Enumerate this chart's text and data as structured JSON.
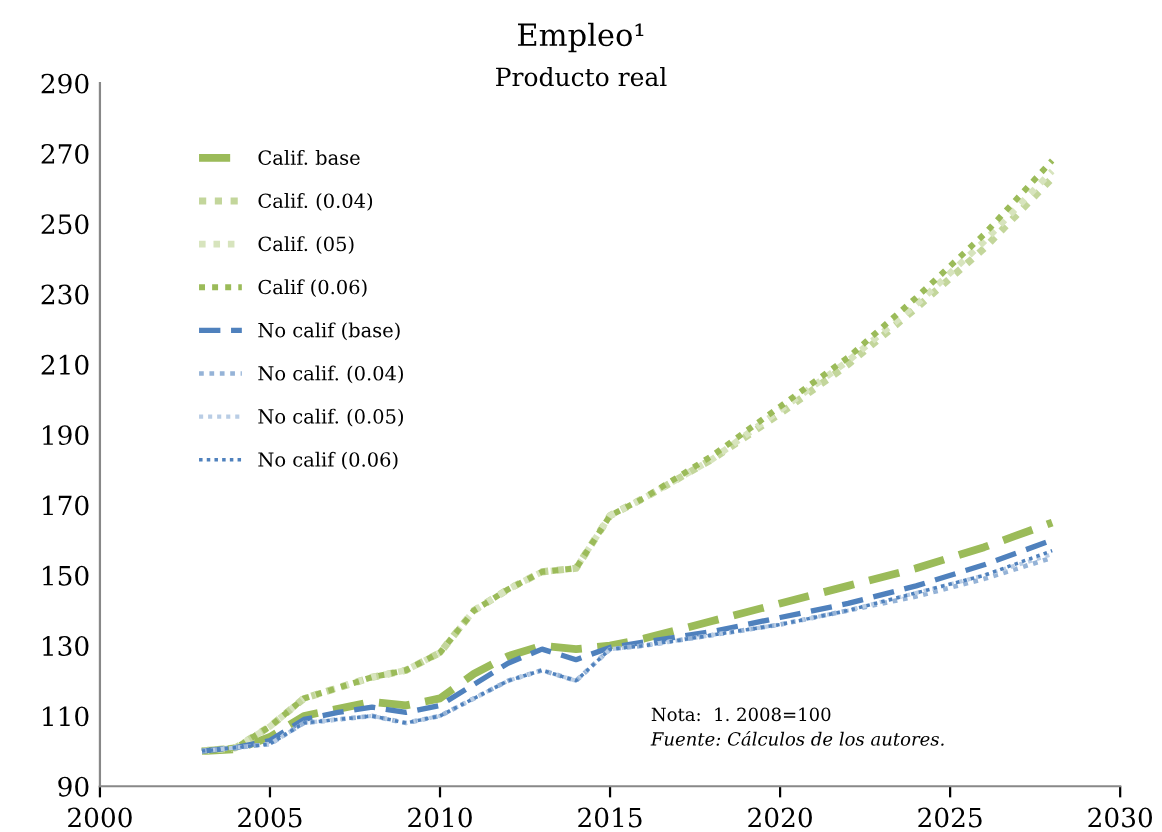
{
  "chart_data": {
    "type": "line",
    "title": "Empleo¹",
    "subtitle": "Producto real",
    "x": [
      2003,
      2004,
      2005,
      2006,
      2007,
      2008,
      2009,
      2010,
      2011,
      2012,
      2013,
      2014,
      2015,
      2016,
      2018,
      2020,
      2022,
      2024,
      2026,
      2028
    ],
    "series": [
      {
        "name": "Calif. base",
        "color": "#9bbb59",
        "line_style": "dashed",
        "values": [
          100,
          100.5,
          104,
          110,
          112,
          114,
          113,
          115,
          122,
          127,
          130,
          129,
          130,
          132,
          137,
          142,
          147,
          152,
          158,
          165
        ]
      },
      {
        "name": "Calif. (0.04)",
        "color": "#c3d69b",
        "line_style": "dotted",
        "values": [
          100,
          101,
          107,
          115,
          118,
          121,
          123,
          128,
          140,
          146,
          151,
          152,
          167,
          172,
          183,
          196,
          210,
          226,
          243,
          263
        ]
      },
      {
        "name": "Calif. (05)",
        "color": "#d7e4bd",
        "line_style": "dotted",
        "values": [
          100,
          101,
          107,
          115,
          118,
          121,
          123,
          128,
          140,
          146,
          151,
          152,
          167,
          172,
          183,
          197,
          211,
          227,
          245,
          265
        ]
      },
      {
        "name": "Calif (0.06)",
        "color": "#9bbb59",
        "line_style": "dotted",
        "values": [
          100,
          101,
          107,
          115,
          118,
          121,
          123,
          128,
          140,
          146,
          151,
          152,
          167,
          172,
          184,
          198,
          212,
          229,
          247,
          268
        ]
      },
      {
        "name": "No calif (base)",
        "color": "#4f81bd",
        "line_style": "dashed",
        "values": [
          100,
          101,
          103,
          109,
          111,
          112.5,
          111,
          113,
          119,
          125,
          129,
          126,
          129.5,
          131,
          134,
          138,
          142,
          147,
          153,
          160
        ]
      },
      {
        "name": "No calif. (0.04)",
        "color": "#95b3d7",
        "line_style": "dotted",
        "values": [
          100,
          101,
          102,
          108,
          109,
          110,
          108,
          110,
          115,
          120,
          123,
          120,
          129,
          130,
          133,
          136,
          140,
          144,
          149,
          155
        ]
      },
      {
        "name": "No calif. (0.05)",
        "color": "#b9cde5",
        "line_style": "dotted",
        "values": [
          100,
          101,
          102,
          108,
          109,
          110,
          108,
          110,
          115,
          120,
          123,
          120,
          129,
          130,
          133,
          136,
          140,
          145,
          150,
          156
        ]
      },
      {
        "name": "No calif (0.06)",
        "color": "#4f81bd",
        "line_style": "dotted",
        "values": [
          100,
          101,
          102,
          108,
          109,
          110,
          108,
          110,
          115,
          120,
          123,
          120,
          129,
          130,
          133,
          136,
          140,
          145,
          150,
          157
        ]
      }
    ],
    "xlim": [
      2000,
      2030
    ],
    "xticks": [
      2000,
      2005,
      2010,
      2015,
      2020,
      2025,
      2030
    ],
    "ylim": [
      90,
      290
    ],
    "yticks": [
      90,
      110,
      130,
      150,
      170,
      190,
      210,
      230,
      250,
      270,
      290
    ],
    "legend": "top left",
    "grid": false,
    "marker": "none",
    "annotations": [
      "Nota:  1. 2008=100",
      "Fuente: Cálculos de los autores."
    ]
  }
}
